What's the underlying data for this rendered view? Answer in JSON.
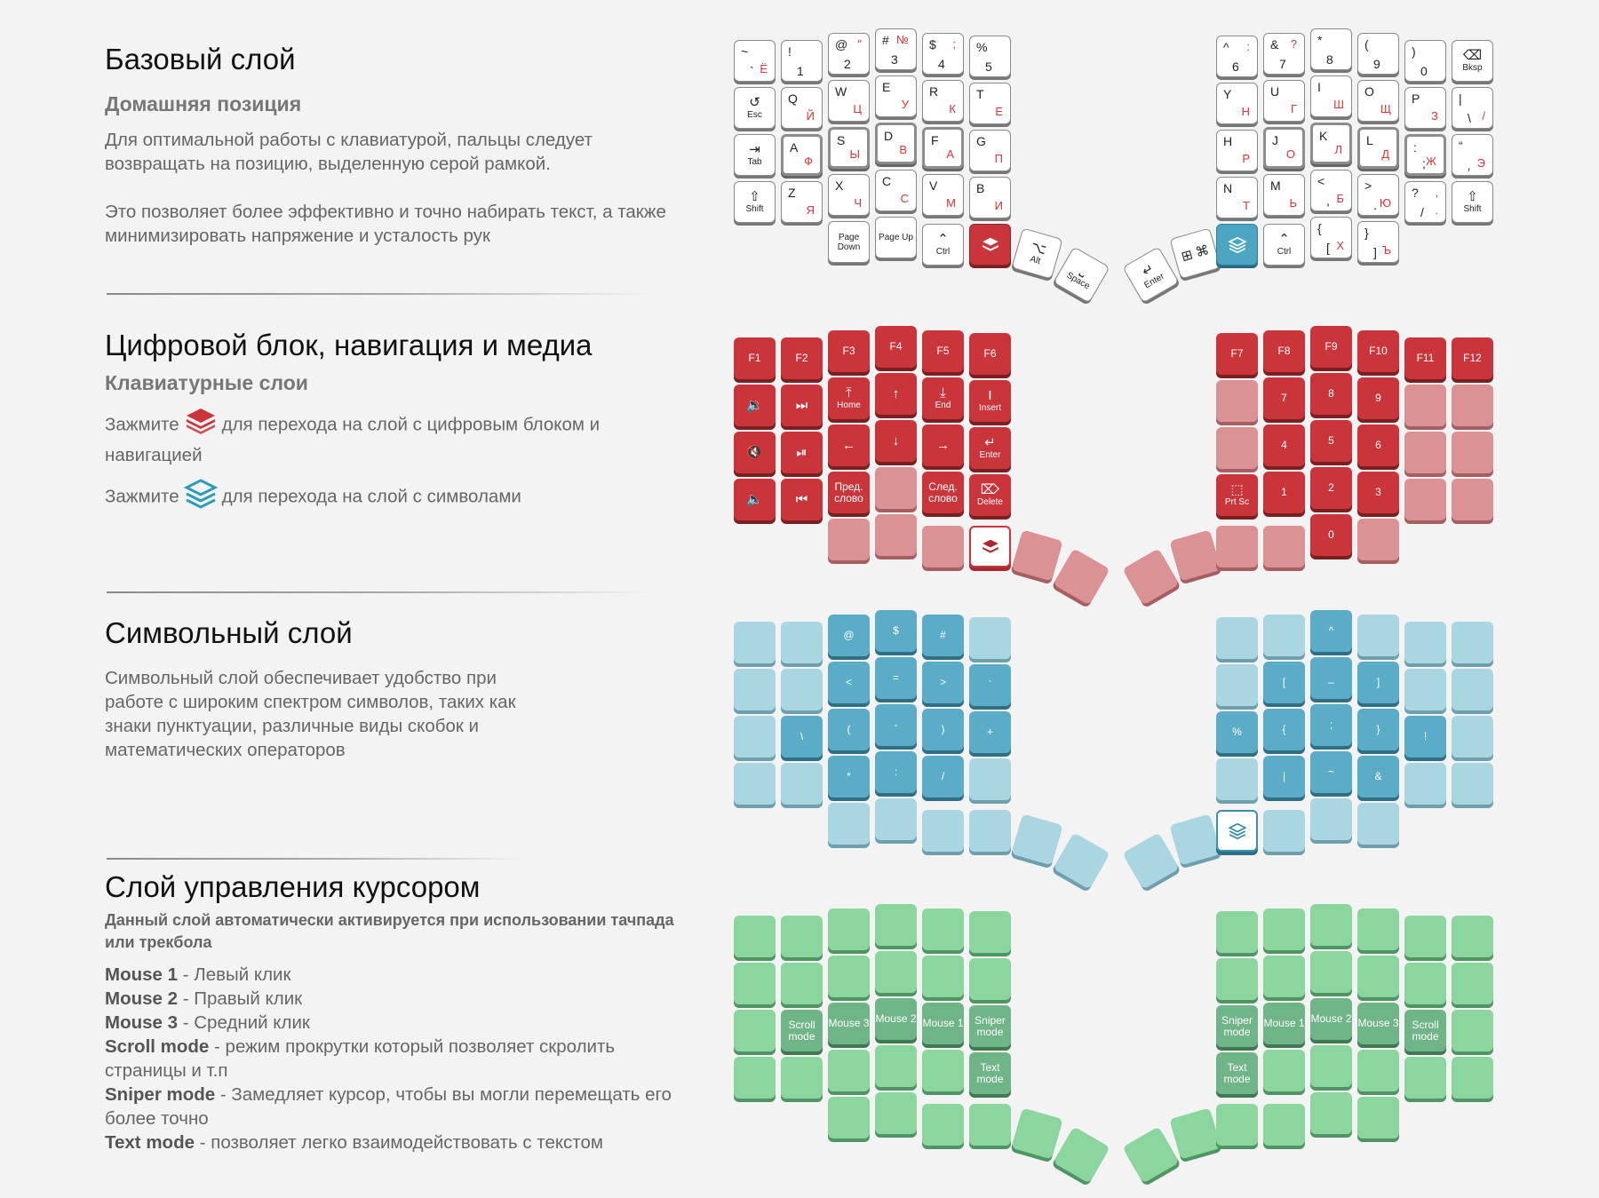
{
  "sections": {
    "base": {
      "title": "Базовый слой",
      "subtitle": "Домашняя позиция",
      "p1": "Для оптимальной работы с клавиатурой, пальцы следует возвращать на позицию, выделенную серой рамкой.",
      "p2": "Это позволяет более эффективно и точно набирать текст, а также минимизировать напряжение и усталость рук"
    },
    "nav": {
      "title": "Цифровой блок, навигация и медиа",
      "subtitle": "Клавиатурные слои",
      "hold": "Зажмите",
      "hold_red_text": "для перехода на слой с цифровым блоком и навигацией",
      "hold_blue_text": "для перехода на слой с символами"
    },
    "sym": {
      "title": "Символьный слой",
      "p": "Символьный слой обеспечивает удобство при работе с широким  спектром символов, таких как знаки пунктуации, различные виды скобок и математических операторов"
    },
    "mouse": {
      "title": "Слой управления курсором",
      "subtitle": "Данный слой автоматически активируется при использовании тачпада или трекбола",
      "items": [
        {
          "term": "Mouse 1",
          "desc": " - Левый клик"
        },
        {
          "term": "Mouse 2",
          "desc": " - Правый клик"
        },
        {
          "term": "Mouse 3",
          "desc": " - Средний клик"
        },
        {
          "term": "Scroll mode",
          "desc": " - режим прокрутки который позволяет скролить страницы и т.п"
        },
        {
          "term": "Sniper mode",
          "desc": " - Замедляет курсор, чтобы вы могли перемещать его более точно"
        },
        {
          "term": "Text mode",
          "desc": " - позволяет легко взаимодействовать с текстом"
        }
      ]
    }
  },
  "colors": {
    "red": "#c9353b",
    "red_light": "#db9295",
    "blue": "#5bacc6",
    "blue_light": "#a9d6e1",
    "green": "#6fb588",
    "green_light": "#8bd59e"
  },
  "base_keys": {
    "left": [
      [
        {
          "t": "~",
          "b": "`",
          "r": "Ё"
        },
        {
          "t": "!",
          "b": "1"
        },
        {
          "t": "@",
          "b": "2",
          "rt": "\""
        },
        {
          "t": "#",
          "b": "3",
          "rt": "№"
        },
        {
          "t": "$",
          "b": "4",
          "rt": ";"
        },
        {
          "t": "%",
          "b": "5"
        }
      ],
      [
        {
          "ic": "↺",
          "s": "Esc"
        },
        {
          "t": "Q",
          "r": "Й"
        },
        {
          "t": "W",
          "r": "Ц"
        },
        {
          "t": "E",
          "r": "У"
        },
        {
          "t": "R",
          "r": "К"
        },
        {
          "t": "T",
          "r": "Е"
        }
      ],
      [
        {
          "ic": "⇥",
          "s": "Tab"
        },
        {
          "t": "A",
          "r": "Ф"
        },
        {
          "t": "S",
          "r": "Ы"
        },
        {
          "t": "D",
          "r": "В"
        },
        {
          "t": "F",
          "r": "А"
        },
        {
          "t": "G",
          "r": "П"
        }
      ],
      [
        {
          "ic": "⇧",
          "s": "Shift"
        },
        {
          "t": "Z",
          "r": "Я"
        },
        {
          "t": "X",
          "r": "Ч"
        },
        {
          "t": "C",
          "r": "С"
        },
        {
          "t": "V",
          "r": "М"
        },
        {
          "t": "B",
          "r": "И"
        }
      ]
    ],
    "left_bottom": [
      {
        "s": "Page Down"
      },
      {
        "s": "Page Up"
      }
    ],
    "left_thumb": [
      {
        "ic": "⌃",
        "s": "Ctrl"
      },
      {
        "layer": "red"
      },
      {
        "ic": "⌥",
        "s": "Alt"
      },
      {
        "ic": "⎵",
        "s": "Space"
      }
    ],
    "right": [
      [
        {
          "t": "^",
          "b": "6",
          "rt": ":"
        },
        {
          "t": "&",
          "b": "7",
          "rt": "?"
        },
        {
          "t": "*",
          "b": "8"
        },
        {
          "t": "(",
          "b": "9"
        },
        {
          "t": ")",
          "b": "0"
        },
        {
          "ic": "⌫",
          "s": "Bksp"
        }
      ],
      [
        {
          "t": "Y",
          "r": "Н"
        },
        {
          "t": "U",
          "r": "Г"
        },
        {
          "t": "I",
          "r": "Ш"
        },
        {
          "t": "O",
          "r": "Щ"
        },
        {
          "t": "P",
          "r": "З"
        },
        {
          "t": "|",
          "b": "\\",
          "r": "/"
        }
      ],
      [
        {
          "t": "H",
          "r": "Р"
        },
        {
          "t": "J",
          "r": "О"
        },
        {
          "t": "K",
          "r": "Л"
        },
        {
          "t": "L",
          "r": "Д"
        },
        {
          "t": ":",
          "b": ";",
          "r": "Ж"
        },
        {
          "t": "“",
          "b": "‚",
          "r": "Э"
        }
      ],
      [
        {
          "t": "N",
          "r": "Т"
        },
        {
          "t": "M",
          "r": "Ь"
        },
        {
          "t": "<",
          "b": ",",
          "r": "Б"
        },
        {
          "t": ">",
          "b": ".",
          "r": "Ю"
        },
        {
          "t": "?",
          "b": "/",
          "rt": ",",
          "r": "."
        },
        {
          "ic": "⇧",
          "s": "Shift"
        }
      ]
    ],
    "right_bottom": [
      {
        "t": "{",
        "b": "[",
        "r": "Х"
      },
      {
        "t": "}",
        "b": "]",
        "r": "Ъ"
      }
    ],
    "right_thumb": [
      {
        "ic": "↵",
        "s": "Enter"
      },
      {
        "ic": "⊞ ⌘"
      },
      {
        "layer": "blue"
      },
      {
        "ic": "⌃",
        "s": "Ctrl"
      }
    ]
  },
  "nav_keys": {
    "f_left": [
      "F1",
      "F2",
      "F3",
      "F4",
      "F5",
      "F6"
    ],
    "f_right": [
      "F7",
      "F8",
      "F9",
      "F10",
      "F11",
      "F12"
    ],
    "row2_left": [
      {
        "ic": "🔉"
      },
      {
        "ic": "⏭"
      },
      {
        "ic": "⤒",
        "s": "Home"
      },
      {
        "ic": "↑"
      },
      {
        "ic": "⤓",
        "s": "End"
      },
      {
        "ic": "I",
        "s": "Insert"
      }
    ],
    "row3_left": [
      {
        "ic": "🔇"
      },
      {
        "ic": "⏯"
      },
      {
        "ic": "←"
      },
      {
        "ic": "↓"
      },
      {
        "ic": "→"
      },
      {
        "ic": "↵",
        "s": "Enter"
      }
    ],
    "row4_left": [
      {
        "ic": "🔈"
      },
      {
        "ic": "⏮"
      },
      {
        "s": "Пред. слово"
      },
      {
        "s": ""
      },
      {
        "s": "След. слово"
      },
      {
        "ic": "⌦",
        "s": "Delete"
      }
    ],
    "num": [
      [
        "",
        "7",
        "8",
        "9",
        "",
        ""
      ],
      [
        "",
        "4",
        "5",
        "6",
        "",
        ""
      ],
      [
        {
          "ic": "⬚",
          "s": "Prt Sc"
        },
        "1",
        "2",
        "3",
        "",
        ""
      ]
    ],
    "zero": "0"
  },
  "sym_keys": {
    "left": [
      [
        "",
        "",
        "@",
        "$",
        "#",
        ""
      ],
      [
        "",
        "",
        "<",
        "=",
        ">",
        "`"
      ],
      [
        "",
        "\\",
        "(",
        "-",
        ")",
        "+"
      ],
      [
        "",
        "",
        "*",
        ":",
        "/",
        ""
      ]
    ],
    "right": [
      [
        "",
        "",
        "^",
        "",
        "",
        ""
      ],
      [
        "",
        "[",
        "_",
        "]",
        "",
        ""
      ],
      [
        "%",
        "{",
        ";",
        "}",
        "!",
        ""
      ],
      [
        "",
        "|",
        "~",
        "&",
        "",
        ""
      ]
    ]
  },
  "mouse_keys": {
    "left_r3": [
      "Scroll mode",
      "Mouse 3",
      "Mouse 2",
      "Mouse 1",
      "Sniper mode"
    ],
    "left_r4": [
      "Text mode"
    ],
    "right_r3": [
      "Sniper mode",
      "Mouse 1",
      "Mouse 2",
      "Mouse 3",
      "Scroll mode"
    ],
    "right_r4": [
      "Text mode"
    ]
  }
}
